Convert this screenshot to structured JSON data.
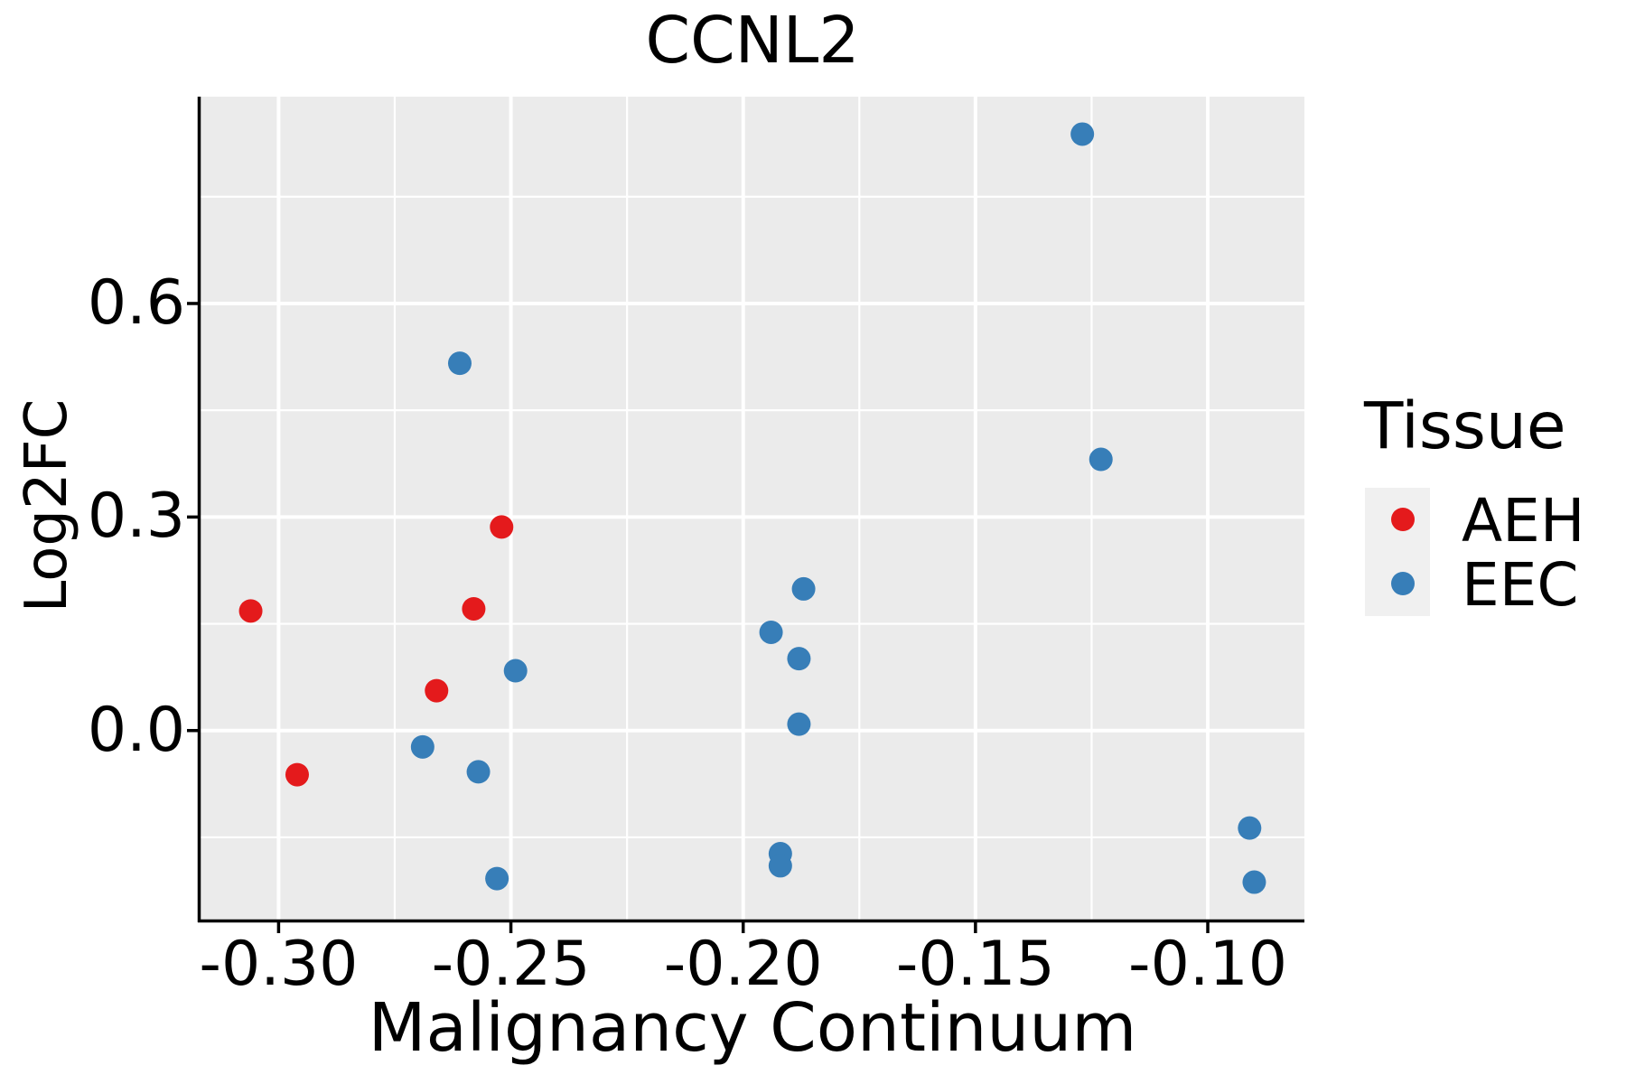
{
  "title": "CCNL2",
  "axes": {
    "x_label": "Malignancy Continuum",
    "y_label": "Log2FC"
  },
  "legend": {
    "title": "Tissue",
    "items": [
      {
        "label": "AEH",
        "color": "#E41A1C"
      },
      {
        "label": "EEC",
        "color": "#377EB8"
      }
    ]
  },
  "colors": {
    "panel_bg": "#EBEBEB",
    "grid": "#FFFFFF",
    "axis": "#000000",
    "text": "#000000",
    "legend_key_bg": "#F0F0F0"
  },
  "chart_data": {
    "type": "scatter",
    "title": "CCNL2",
    "xlabel": "Malignancy Continuum",
    "ylabel": "Log2FC",
    "xlim": [
      -0.3168,
      -0.0792
    ],
    "ylim": [
      -0.2656,
      0.8906
    ],
    "grid": true,
    "legend_position": "right",
    "x_ticks": [
      -0.3,
      -0.25,
      -0.2,
      -0.15,
      -0.1
    ],
    "x_tick_labels": [
      "-0.30",
      "-0.25",
      "-0.20",
      "-0.15",
      "-0.10"
    ],
    "x_minor_ticks": [
      -0.275,
      -0.225,
      -0.175,
      -0.125
    ],
    "y_ticks": [
      0.0,
      0.3,
      0.6
    ],
    "y_tick_labels": [
      "0.0",
      "0.3",
      "0.6"
    ],
    "y_minor_ticks": [
      -0.15,
      0.15,
      0.45,
      0.75
    ],
    "point_radius": 13,
    "series": [
      {
        "name": "AEH",
        "color": "#E41A1C",
        "points": [
          [
            -0.306,
            0.168
          ],
          [
            -0.296,
            -0.062
          ],
          [
            -0.266,
            0.056
          ],
          [
            -0.258,
            0.171
          ],
          [
            -0.252,
            0.286
          ]
        ]
      },
      {
        "name": "EEC",
        "color": "#377EB8",
        "points": [
          [
            -0.261,
            0.516
          ],
          [
            -0.269,
            -0.023
          ],
          [
            -0.257,
            -0.058
          ],
          [
            -0.249,
            0.084
          ],
          [
            -0.253,
            -0.208
          ],
          [
            -0.194,
            0.138
          ],
          [
            -0.192,
            -0.173
          ],
          [
            -0.192,
            -0.19
          ],
          [
            -0.188,
            0.101
          ],
          [
            -0.188,
            0.009
          ],
          [
            -0.187,
            0.199
          ],
          [
            -0.127,
            0.838
          ],
          [
            -0.123,
            0.381
          ],
          [
            -0.091,
            -0.137
          ],
          [
            -0.09,
            -0.213
          ]
        ]
      }
    ]
  }
}
